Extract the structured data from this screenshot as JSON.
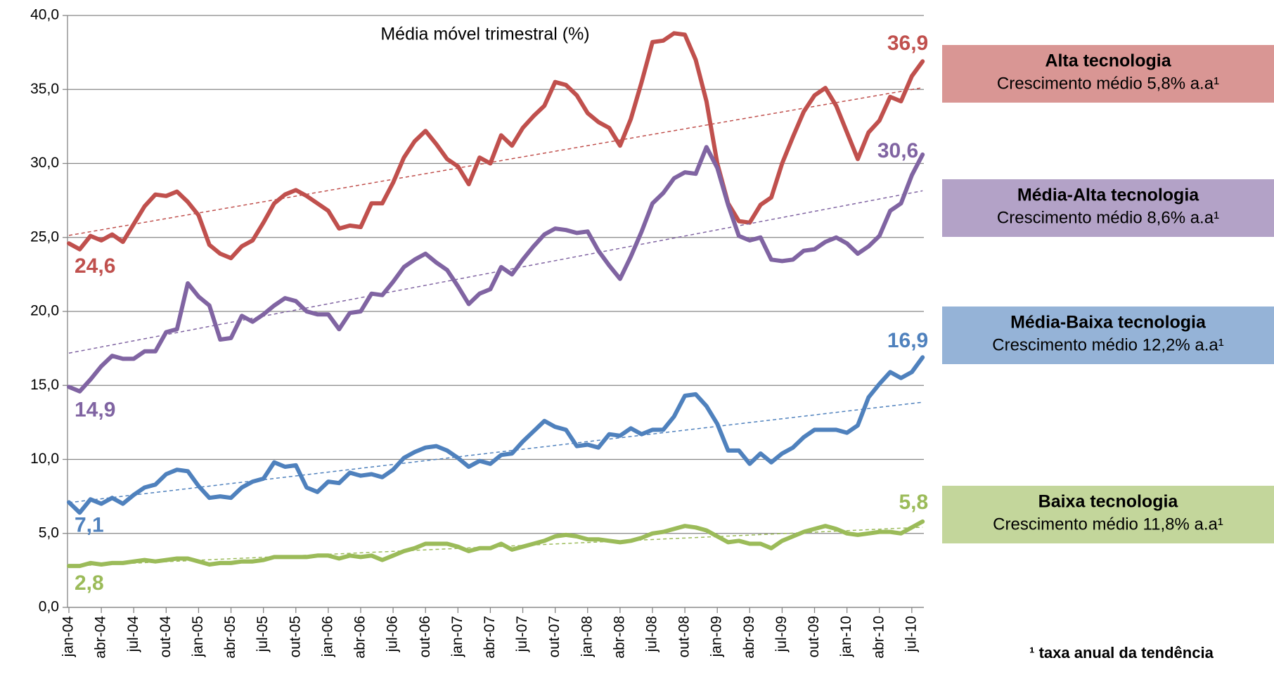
{
  "chart_data": {
    "type": "line",
    "subtitle": "Média móvel trimestral (%)",
    "footnote": "¹ taxa anual da tendência",
    "categories": [
      "jan-04",
      null,
      null,
      "abr-04",
      null,
      null,
      "jul-04",
      null,
      null,
      "out-04",
      null,
      null,
      "jan-05",
      null,
      null,
      "abr-05",
      null,
      null,
      "jul-05",
      null,
      null,
      "out-05",
      null,
      null,
      "jan-06",
      null,
      null,
      "abr-06",
      null,
      null,
      "jul-06",
      null,
      null,
      "out-06",
      null,
      null,
      "jan-07",
      null,
      null,
      "abr-07",
      null,
      null,
      "jul-07",
      null,
      null,
      "out-07",
      null,
      null,
      "jan-08",
      null,
      null,
      "abr-08",
      null,
      null,
      "jul-08",
      null,
      null,
      "out-08",
      null,
      null,
      "jan-09",
      null,
      null,
      "abr-09",
      null,
      null,
      "jul-09",
      null,
      null,
      "out-09",
      null,
      null,
      "jan-10",
      null,
      null,
      "abr-10",
      null,
      null,
      "jul-10",
      null
    ],
    "ylim": [
      0,
      40
    ],
    "yticks": [
      {
        "value": 0,
        "label": "0,0"
      },
      {
        "value": 5,
        "label": "5,0"
      },
      {
        "value": 10,
        "label": "10,0"
      },
      {
        "value": 15,
        "label": "15,0"
      },
      {
        "value": 20,
        "label": "20,0"
      },
      {
        "value": 25,
        "label": "25,0"
      },
      {
        "value": 30,
        "label": "30,0"
      },
      {
        "value": 35,
        "label": "35,0"
      },
      {
        "value": 40,
        "label": "40,0"
      }
    ],
    "grid": true,
    "trendline": true,
    "series": [
      {
        "name": "Alta tecnologia",
        "legend_note": "Crescimento médio  5,8% a.a¹",
        "color": "#c0504d",
        "legend_color": "#d99694",
        "values": [
          24.6,
          24.2,
          25.1,
          24.8,
          25.2,
          24.7,
          25.9,
          27.1,
          27.9,
          27.8,
          28.1,
          27.4,
          26.5,
          24.5,
          23.9,
          23.6,
          24.4,
          24.8,
          26.0,
          27.3,
          27.9,
          28.2,
          27.8,
          27.3,
          26.8,
          25.6,
          25.8,
          25.7,
          27.3,
          27.3,
          28.7,
          30.4,
          31.5,
          32.2,
          31.3,
          30.3,
          29.8,
          28.6,
          30.4,
          30.0,
          31.9,
          31.2,
          32.4,
          33.2,
          33.9,
          35.5,
          35.3,
          34.6,
          33.4,
          32.8,
          32.4,
          31.2,
          33.0,
          35.5,
          38.2,
          38.3,
          38.8,
          38.7,
          37.0,
          34.2,
          30.0,
          27.3,
          26.1,
          26.0,
          27.2,
          27.7,
          30.0,
          31.8,
          33.5,
          34.6,
          35.1,
          33.9,
          32.1,
          30.3,
          32.1,
          32.9,
          34.5,
          34.2,
          35.9,
          36.9
        ],
        "value_labels": [
          "24,6",
          null,
          null,
          null,
          null,
          null,
          null,
          null,
          null,
          null,
          null,
          null,
          null,
          null,
          null,
          null,
          null,
          null,
          null,
          null,
          null,
          null,
          null,
          null,
          null,
          null,
          null,
          null,
          null,
          null,
          null,
          null,
          null,
          null,
          null,
          null,
          null,
          null,
          null,
          null,
          null,
          null,
          null,
          null,
          null,
          null,
          null,
          null,
          null,
          null,
          null,
          null,
          null,
          null,
          null,
          null,
          null,
          null,
          null,
          null,
          null,
          null,
          null,
          null,
          null,
          null,
          null,
          null,
          null,
          null,
          null,
          null,
          null,
          null,
          null,
          null,
          null,
          null,
          null,
          "36,9"
        ]
      },
      {
        "name": "Média-Alta tecnologia",
        "legend_note": "Crescimento médio 8,6% a.a¹",
        "color": "#8064a2",
        "legend_color": "#b3a2c7",
        "values": [
          14.9,
          14.6,
          15.4,
          16.3,
          17.0,
          16.8,
          16.8,
          17.3,
          17.3,
          18.6,
          18.8,
          21.9,
          21.0,
          20.4,
          18.1,
          18.2,
          19.7,
          19.3,
          19.8,
          20.4,
          20.9,
          20.7,
          20.0,
          19.8,
          19.8,
          18.8,
          19.9,
          20.0,
          21.2,
          21.1,
          22.0,
          23.0,
          23.5,
          23.9,
          23.3,
          22.8,
          21.7,
          20.5,
          21.2,
          21.5,
          23.0,
          22.5,
          23.5,
          24.4,
          25.2,
          25.6,
          25.5,
          25.3,
          25.4,
          24.1,
          23.1,
          22.2,
          23.7,
          25.4,
          27.3,
          28.0,
          29.0,
          29.4,
          29.3,
          31.1,
          29.7,
          27.2,
          25.1,
          24.8,
          25.0,
          23.5,
          23.4,
          23.5,
          24.1,
          24.2,
          24.7,
          25.0,
          24.6,
          23.9,
          24.4,
          25.1,
          26.8,
          27.3,
          29.2,
          30.6
        ],
        "value_labels": [
          "14,9",
          null,
          null,
          null,
          null,
          null,
          null,
          null,
          null,
          null,
          null,
          null,
          null,
          null,
          null,
          null,
          null,
          null,
          null,
          null,
          null,
          null,
          null,
          null,
          null,
          null,
          null,
          null,
          null,
          null,
          null,
          null,
          null,
          null,
          null,
          null,
          null,
          null,
          null,
          null,
          null,
          null,
          null,
          null,
          null,
          null,
          null,
          null,
          null,
          null,
          null,
          null,
          null,
          null,
          null,
          null,
          null,
          null,
          null,
          null,
          null,
          null,
          null,
          null,
          null,
          null,
          null,
          null,
          null,
          null,
          null,
          null,
          null,
          null,
          null,
          null,
          null,
          null,
          null,
          "30,6"
        ]
      },
      {
        "name": "Média-Baixa tecnologia",
        "legend_note": "Crescimento médio 12,2% a.a¹",
        "color": "#4f81bd",
        "legend_color": "#95b3d7",
        "values": [
          7.1,
          6.4,
          7.3,
          7.0,
          7.4,
          7.0,
          7.6,
          8.1,
          8.3,
          9.0,
          9.3,
          9.2,
          8.2,
          7.4,
          7.5,
          7.4,
          8.1,
          8.5,
          8.7,
          9.8,
          9.5,
          9.6,
          8.1,
          7.8,
          8.5,
          8.4,
          9.1,
          8.9,
          9.0,
          8.8,
          9.3,
          10.1,
          10.5,
          10.8,
          10.9,
          10.6,
          10.1,
          9.5,
          9.9,
          9.7,
          10.3,
          10.4,
          11.2,
          11.9,
          12.6,
          12.2,
          12.0,
          10.9,
          11.0,
          10.8,
          11.7,
          11.6,
          12.1,
          11.7,
          12.0,
          12.0,
          12.9,
          14.3,
          14.4,
          13.6,
          12.4,
          10.6,
          10.6,
          9.7,
          10.4,
          9.8,
          10.4,
          10.8,
          11.5,
          12.0,
          12.0,
          12.0,
          11.8,
          12.3,
          14.2,
          15.1,
          15.9,
          15.5,
          15.9,
          16.9
        ],
        "value_labels": [
          "7,1",
          null,
          null,
          null,
          null,
          null,
          null,
          null,
          null,
          null,
          null,
          null,
          null,
          null,
          null,
          null,
          null,
          null,
          null,
          null,
          null,
          null,
          null,
          null,
          null,
          null,
          null,
          null,
          null,
          null,
          null,
          null,
          null,
          null,
          null,
          null,
          null,
          null,
          null,
          null,
          null,
          null,
          null,
          null,
          null,
          null,
          null,
          null,
          null,
          null,
          null,
          null,
          null,
          null,
          null,
          null,
          null,
          null,
          null,
          null,
          null,
          null,
          null,
          null,
          null,
          null,
          null,
          null,
          null,
          null,
          null,
          null,
          null,
          null,
          null,
          null,
          null,
          null,
          null,
          "16,9"
        ]
      },
      {
        "name": "Baixa tecnologia",
        "legend_note": "Crescimento médio 11,8% a.a¹",
        "color": "#9bbb59",
        "legend_color": "#c3d69b",
        "values": [
          2.8,
          2.8,
          3.0,
          2.9,
          3.0,
          3.0,
          3.1,
          3.2,
          3.1,
          3.2,
          3.3,
          3.3,
          3.1,
          2.9,
          3.0,
          3.0,
          3.1,
          3.1,
          3.2,
          3.4,
          3.4,
          3.4,
          3.4,
          3.5,
          3.5,
          3.3,
          3.5,
          3.4,
          3.5,
          3.2,
          3.5,
          3.8,
          4.0,
          4.3,
          4.3,
          4.3,
          4.1,
          3.8,
          4.0,
          4.0,
          4.3,
          3.9,
          4.1,
          4.3,
          4.5,
          4.8,
          4.9,
          4.8,
          4.6,
          4.6,
          4.5,
          4.4,
          4.5,
          4.7,
          5.0,
          5.1,
          5.3,
          5.5,
          5.4,
          5.2,
          4.8,
          4.4,
          4.5,
          4.3,
          4.3,
          4.0,
          4.5,
          4.8,
          5.1,
          5.3,
          5.5,
          5.3,
          5.0,
          4.9,
          5.0,
          5.1,
          5.1,
          5.0,
          5.4,
          5.8
        ],
        "value_labels": [
          "2,8",
          null,
          null,
          null,
          null,
          null,
          null,
          null,
          null,
          null,
          null,
          null,
          null,
          null,
          null,
          null,
          null,
          null,
          null,
          null,
          null,
          null,
          null,
          null,
          null,
          null,
          null,
          null,
          null,
          null,
          null,
          null,
          null,
          null,
          null,
          null,
          null,
          null,
          null,
          null,
          null,
          null,
          null,
          null,
          null,
          null,
          null,
          null,
          null,
          null,
          null,
          null,
          null,
          null,
          null,
          null,
          null,
          null,
          null,
          null,
          null,
          null,
          null,
          null,
          null,
          null,
          null,
          null,
          null,
          null,
          null,
          null,
          null,
          null,
          null,
          null,
          null,
          null,
          null,
          "5,8"
        ]
      }
    ]
  }
}
